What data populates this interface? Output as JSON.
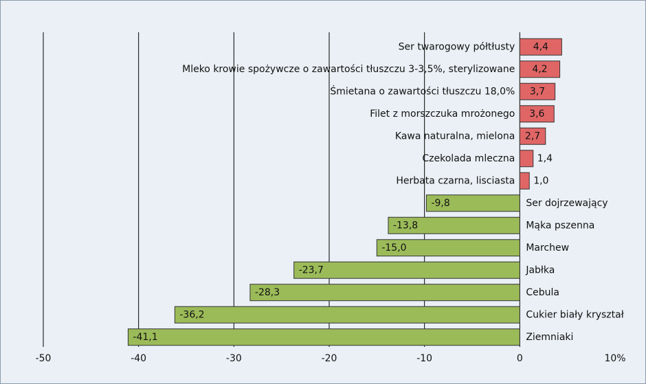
{
  "chart_data": {
    "type": "bar",
    "orientation": "horizontal",
    "categories": [
      "Ser twarogowy półtłusty",
      "Mleko krowie spożywcze o zawartości tłuszczu 3-3,5%, sterylizowane",
      "Śmietana o zawartości tłuszczu 18,0%",
      "Filet z morszczuka mrożonego",
      "Kawa naturalna, mielona",
      "Czekolada mleczna",
      "Herbata czarna, lisciasta",
      "Ser dojrzewający",
      "Mąka pszenna",
      "Marchew",
      "Jabłka",
      "Cebula",
      "Cukier biały kryształ",
      "Ziemniaki"
    ],
    "values": [
      4.4,
      4.2,
      3.7,
      3.6,
      2.7,
      1.4,
      1.0,
      -9.8,
      -13.8,
      -15.0,
      -23.7,
      -28.3,
      -36.2,
      -41.1
    ],
    "value_labels": [
      "4,4",
      "4,2",
      "3,7",
      "3,6",
      "2,7",
      "1,4",
      "1,0",
      "-9,8",
      "-13,8",
      "-15,0",
      "-23,7",
      "-28,3",
      "-36,2",
      "-41,1"
    ],
    "colors": [
      "#e06666",
      "#e06666",
      "#e06666",
      "#e06666",
      "#e06666",
      "#e06666",
      "#e06666",
      "#9bbb59",
      "#9bbb59",
      "#9bbb59",
      "#9bbb59",
      "#9bbb59",
      "#9bbb59",
      "#9bbb59"
    ],
    "xlim": [
      -50,
      10
    ],
    "xticks": [
      -50,
      -40,
      -30,
      -20,
      -10,
      0,
      {
        "value": 10,
        "label": "10%"
      }
    ],
    "grid": true
  }
}
